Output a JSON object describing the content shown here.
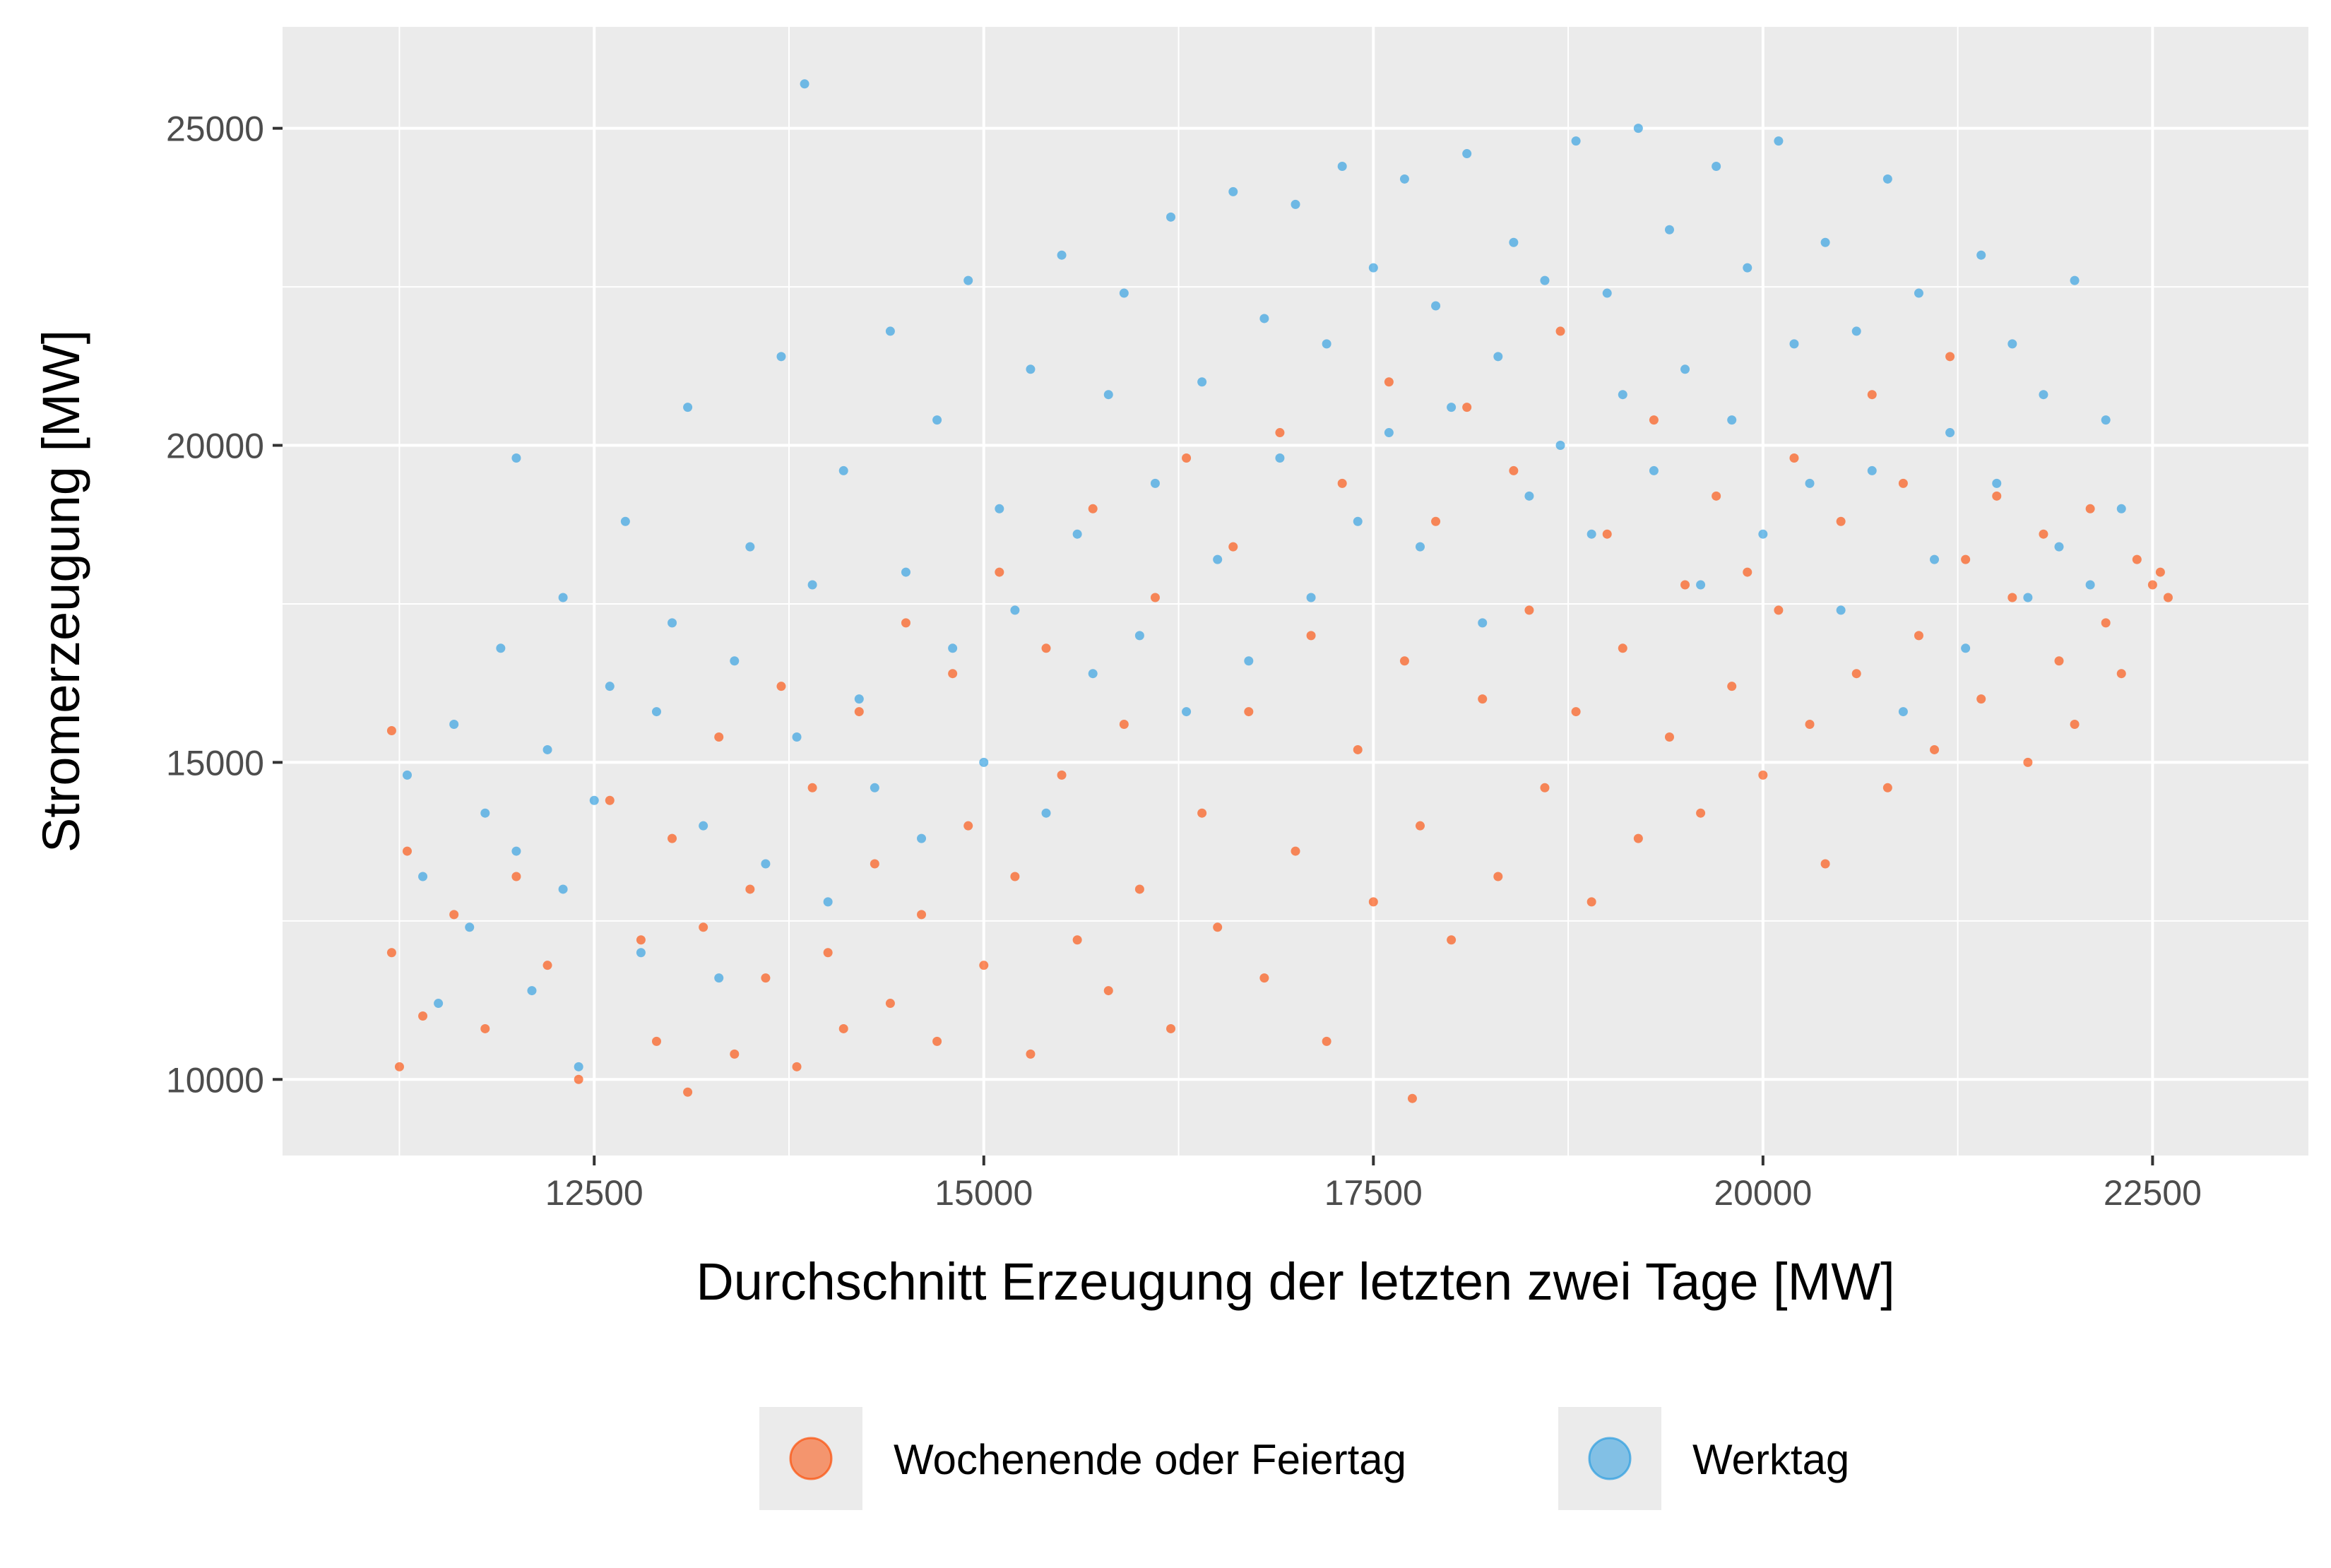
{
  "chart_data": {
    "type": "scatter",
    "title": "",
    "xlabel": "Durchschnitt Erzeugung der letzten zwei Tage [MW]",
    "ylabel": "Stromerzeugung [MW]",
    "xlim": [
      10500,
      23500
    ],
    "ylim": [
      8800,
      26600
    ],
    "x_ticks": [
      12500,
      15000,
      17500,
      20000,
      22500
    ],
    "y_ticks": [
      10000,
      15000,
      20000,
      25000
    ],
    "x_tick_labels": [
      "12500",
      "15000",
      "17500",
      "20000",
      "22500"
    ],
    "y_tick_labels": [
      "10000",
      "15000",
      "20000",
      "25000"
    ],
    "grid": true,
    "legend_position": "bottom",
    "background_color": "#ebebeb",
    "grid_color": "#ffffff",
    "series": [
      {
        "name": "Werktag",
        "color": "#2b9de0",
        "points": [
          [
            11300,
            14800
          ],
          [
            11400,
            13200
          ],
          [
            11500,
            11200
          ],
          [
            11600,
            15600
          ],
          [
            11700,
            12400
          ],
          [
            11800,
            14200
          ],
          [
            11900,
            16800
          ],
          [
            12000,
            13600
          ],
          [
            12000,
            19800
          ],
          [
            12100,
            11400
          ],
          [
            12200,
            15200
          ],
          [
            12300,
            17600
          ],
          [
            12300,
            13000
          ],
          [
            12400,
            10200
          ],
          [
            12500,
            14400
          ],
          [
            12600,
            16200
          ],
          [
            12700,
            18800
          ],
          [
            12800,
            12000
          ],
          [
            12900,
            15800
          ],
          [
            13000,
            17200
          ],
          [
            13100,
            20600
          ],
          [
            13200,
            14000
          ],
          [
            13300,
            11600
          ],
          [
            13400,
            16600
          ],
          [
            13500,
            18400
          ],
          [
            13600,
            13400
          ],
          [
            13700,
            21400
          ],
          [
            13800,
            15400
          ],
          [
            13850,
            25700
          ],
          [
            13900,
            17800
          ],
          [
            14000,
            12800
          ],
          [
            14100,
            19600
          ],
          [
            14200,
            16000
          ],
          [
            14300,
            14600
          ],
          [
            14400,
            21800
          ],
          [
            14500,
            18000
          ],
          [
            14600,
            13800
          ],
          [
            14700,
            20400
          ],
          [
            14800,
            16800
          ],
          [
            14900,
            22600
          ],
          [
            15000,
            15000
          ],
          [
            15100,
            19000
          ],
          [
            15200,
            17400
          ],
          [
            15300,
            21200
          ],
          [
            15400,
            14200
          ],
          [
            15500,
            23000
          ],
          [
            15600,
            18600
          ],
          [
            15700,
            16400
          ],
          [
            15800,
            20800
          ],
          [
            15900,
            22400
          ],
          [
            16000,
            17000
          ],
          [
            16100,
            19400
          ],
          [
            16200,
            23600
          ],
          [
            16300,
            15800
          ],
          [
            16400,
            21000
          ],
          [
            16500,
            18200
          ],
          [
            16600,
            24000
          ],
          [
            16700,
            16600
          ],
          [
            16800,
            22000
          ],
          [
            16900,
            19800
          ],
          [
            17000,
            23800
          ],
          [
            17100,
            17600
          ],
          [
            17200,
            21600
          ],
          [
            17300,
            24400
          ],
          [
            17400,
            18800
          ],
          [
            17500,
            22800
          ],
          [
            17600,
            20200
          ],
          [
            17700,
            24200
          ],
          [
            17800,
            18400
          ],
          [
            17900,
            22200
          ],
          [
            18000,
            20600
          ],
          [
            18100,
            24600
          ],
          [
            18200,
            17200
          ],
          [
            18300,
            21400
          ],
          [
            18400,
            23200
          ],
          [
            18500,
            19200
          ],
          [
            18600,
            22600
          ],
          [
            18700,
            20000
          ],
          [
            18800,
            24800
          ],
          [
            18900,
            18600
          ],
          [
            19000,
            22400
          ],
          [
            19100,
            20800
          ],
          [
            19200,
            25000
          ],
          [
            19300,
            19600
          ],
          [
            19400,
            23400
          ],
          [
            19500,
            21200
          ],
          [
            19600,
            17800
          ],
          [
            19700,
            24400
          ],
          [
            19800,
            20400
          ],
          [
            19900,
            22800
          ],
          [
            20000,
            18600
          ],
          [
            20100,
            24800
          ],
          [
            20200,
            21600
          ],
          [
            20300,
            19400
          ],
          [
            20400,
            23200
          ],
          [
            20500,
            17400
          ],
          [
            20600,
            21800
          ],
          [
            20700,
            19600
          ],
          [
            20800,
            24200
          ],
          [
            20900,
            15800
          ],
          [
            21000,
            22400
          ],
          [
            21100,
            18200
          ],
          [
            21200,
            20200
          ],
          [
            21300,
            16800
          ],
          [
            21400,
            23000
          ],
          [
            21500,
            19400
          ],
          [
            21600,
            21600
          ],
          [
            21700,
            17600
          ],
          [
            21800,
            20800
          ],
          [
            21900,
            18400
          ],
          [
            22000,
            22600
          ],
          [
            22100,
            17800
          ],
          [
            22200,
            20400
          ],
          [
            22300,
            19000
          ]
        ]
      },
      {
        "name": "Wochenende oder Feiertag",
        "color": "#fc4e07",
        "points": [
          [
            11200,
            15500
          ],
          [
            11200,
            12000
          ],
          [
            11250,
            10200
          ],
          [
            11300,
            13600
          ],
          [
            11400,
            11000
          ],
          [
            11600,
            12600
          ],
          [
            11800,
            10800
          ],
          [
            12000,
            13200
          ],
          [
            12200,
            11800
          ],
          [
            12400,
            10000
          ],
          [
            12600,
            14400
          ],
          [
            12800,
            12200
          ],
          [
            12900,
            10600
          ],
          [
            13000,
            13800
          ],
          [
            13100,
            9800
          ],
          [
            13200,
            12400
          ],
          [
            13300,
            15400
          ],
          [
            13400,
            10400
          ],
          [
            13500,
            13000
          ],
          [
            13600,
            11600
          ],
          [
            13700,
            16200
          ],
          [
            13800,
            10200
          ],
          [
            13900,
            14600
          ],
          [
            14000,
            12000
          ],
          [
            14100,
            10800
          ],
          [
            14200,
            15800
          ],
          [
            14300,
            13400
          ],
          [
            14400,
            11200
          ],
          [
            14500,
            17200
          ],
          [
            14600,
            12600
          ],
          [
            14700,
            10600
          ],
          [
            14800,
            16400
          ],
          [
            14900,
            14000
          ],
          [
            15000,
            11800
          ],
          [
            15100,
            18000
          ],
          [
            15200,
            13200
          ],
          [
            15300,
            10400
          ],
          [
            15400,
            16800
          ],
          [
            15500,
            14800
          ],
          [
            15600,
            12200
          ],
          [
            15700,
            19000
          ],
          [
            15800,
            11400
          ],
          [
            15900,
            15600
          ],
          [
            16000,
            13000
          ],
          [
            16100,
            17600
          ],
          [
            16200,
            10800
          ],
          [
            16300,
            19800
          ],
          [
            16400,
            14200
          ],
          [
            16500,
            12400
          ],
          [
            16600,
            18400
          ],
          [
            16700,
            15800
          ],
          [
            16800,
            11600
          ],
          [
            16900,
            20200
          ],
          [
            17000,
            13600
          ],
          [
            17100,
            17000
          ],
          [
            17200,
            10600
          ],
          [
            17300,
            19400
          ],
          [
            17400,
            15200
          ],
          [
            17500,
            12800
          ],
          [
            17600,
            21000
          ],
          [
            17700,
            16600
          ],
          [
            17750,
            9700
          ],
          [
            17800,
            14000
          ],
          [
            17900,
            18800
          ],
          [
            18000,
            12200
          ],
          [
            18100,
            20600
          ],
          [
            18200,
            16000
          ],
          [
            18300,
            13200
          ],
          [
            18400,
            19600
          ],
          [
            18500,
            17400
          ],
          [
            18600,
            14600
          ],
          [
            18700,
            21800
          ],
          [
            18800,
            15800
          ],
          [
            18900,
            12800
          ],
          [
            19000,
            18600
          ],
          [
            19100,
            16800
          ],
          [
            19200,
            13800
          ],
          [
            19300,
            20400
          ],
          [
            19400,
            15400
          ],
          [
            19500,
            17800
          ],
          [
            19600,
            14200
          ],
          [
            19700,
            19200
          ],
          [
            19800,
            16200
          ],
          [
            19900,
            18000
          ],
          [
            20000,
            14800
          ],
          [
            20100,
            17400
          ],
          [
            20200,
            19800
          ],
          [
            20300,
            15600
          ],
          [
            20400,
            13400
          ],
          [
            20500,
            18800
          ],
          [
            20600,
            16400
          ],
          [
            20700,
            20800
          ],
          [
            20800,
            14600
          ],
          [
            20900,
            19400
          ],
          [
            21000,
            17000
          ],
          [
            21100,
            15200
          ],
          [
            21200,
            21400
          ],
          [
            21300,
            18200
          ],
          [
            21400,
            16000
          ],
          [
            21500,
            19200
          ],
          [
            21600,
            17600
          ],
          [
            21700,
            15000
          ],
          [
            21800,
            18600
          ],
          [
            21900,
            16600
          ],
          [
            22000,
            15600
          ],
          [
            22100,
            19000
          ],
          [
            22200,
            17200
          ],
          [
            22300,
            16400
          ],
          [
            22400,
            18200
          ],
          [
            22500,
            17800
          ],
          [
            22550,
            18000
          ],
          [
            22600,
            17600
          ]
        ]
      }
    ],
    "legend": [
      {
        "name": "Wochenende oder Feiertag",
        "color": "#fc4e07"
      },
      {
        "name": "Werktag",
        "color": "#2b9de0"
      }
    ]
  }
}
